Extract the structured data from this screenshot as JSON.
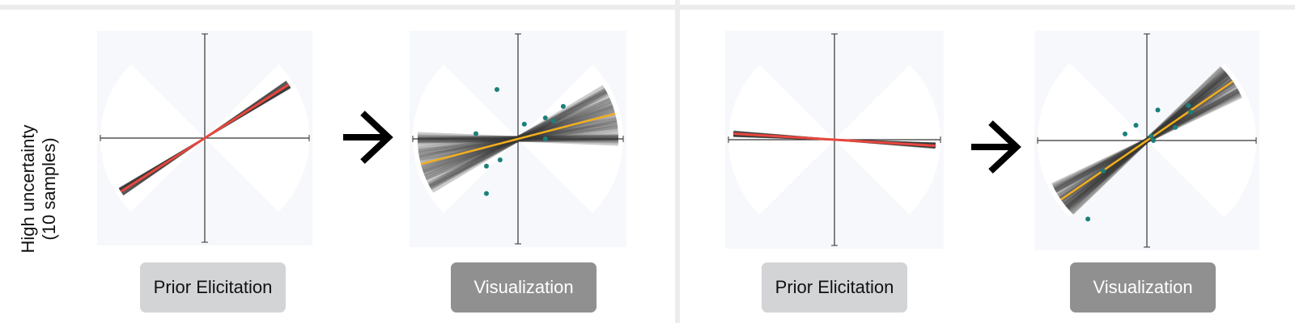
{
  "row_label": {
    "line1": "High uncertainty",
    "line2": "(10 samples)"
  },
  "buttons": {
    "prior_label": "Prior Elicitation",
    "visualization_label": "Visualization"
  },
  "colors": {
    "prior_line": "#e8473f",
    "fitted_line": "#f2ae1c",
    "data_point": "#1b7f7a",
    "panel_bg": "#f6f8fb",
    "sector_bg": "#ffffff",
    "sample_line": "#3a3a3a"
  },
  "icons": {
    "arrow": "arrow-right-icon"
  },
  "experiments": [
    {
      "prior": {
        "slope": 0.64,
        "sector_spread_deg": 45
      },
      "visualization": {
        "fitted_slope": 0.26,
        "points": [
          [
            -0.2,
            0.47
          ],
          [
            -0.4,
            0.05
          ],
          [
            -0.3,
            -0.26
          ],
          [
            -0.17,
            -0.2
          ],
          [
            -0.3,
            -0.52
          ],
          [
            0.06,
            0.14
          ],
          [
            0.26,
            0.2
          ],
          [
            0.34,
            0.17
          ],
          [
            0.43,
            0.31
          ],
          [
            0.26,
            0.0
          ]
        ]
      }
    },
    {
      "prior": {
        "slope": -0.06,
        "sector_spread_deg": 45
      },
      "visualization": {
        "fitted_slope": 0.69,
        "points": [
          [
            -0.1,
            0.14
          ],
          [
            -0.2,
            0.06
          ],
          [
            -0.4,
            -0.28
          ],
          [
            -0.54,
            -0.72
          ],
          [
            0.1,
            0.28
          ],
          [
            0.26,
            0.12
          ],
          [
            0.38,
            0.32
          ],
          [
            0.4,
            0.26
          ],
          [
            0.04,
            0.04
          ],
          [
            0.06,
            0.0
          ]
        ]
      }
    }
  ]
}
